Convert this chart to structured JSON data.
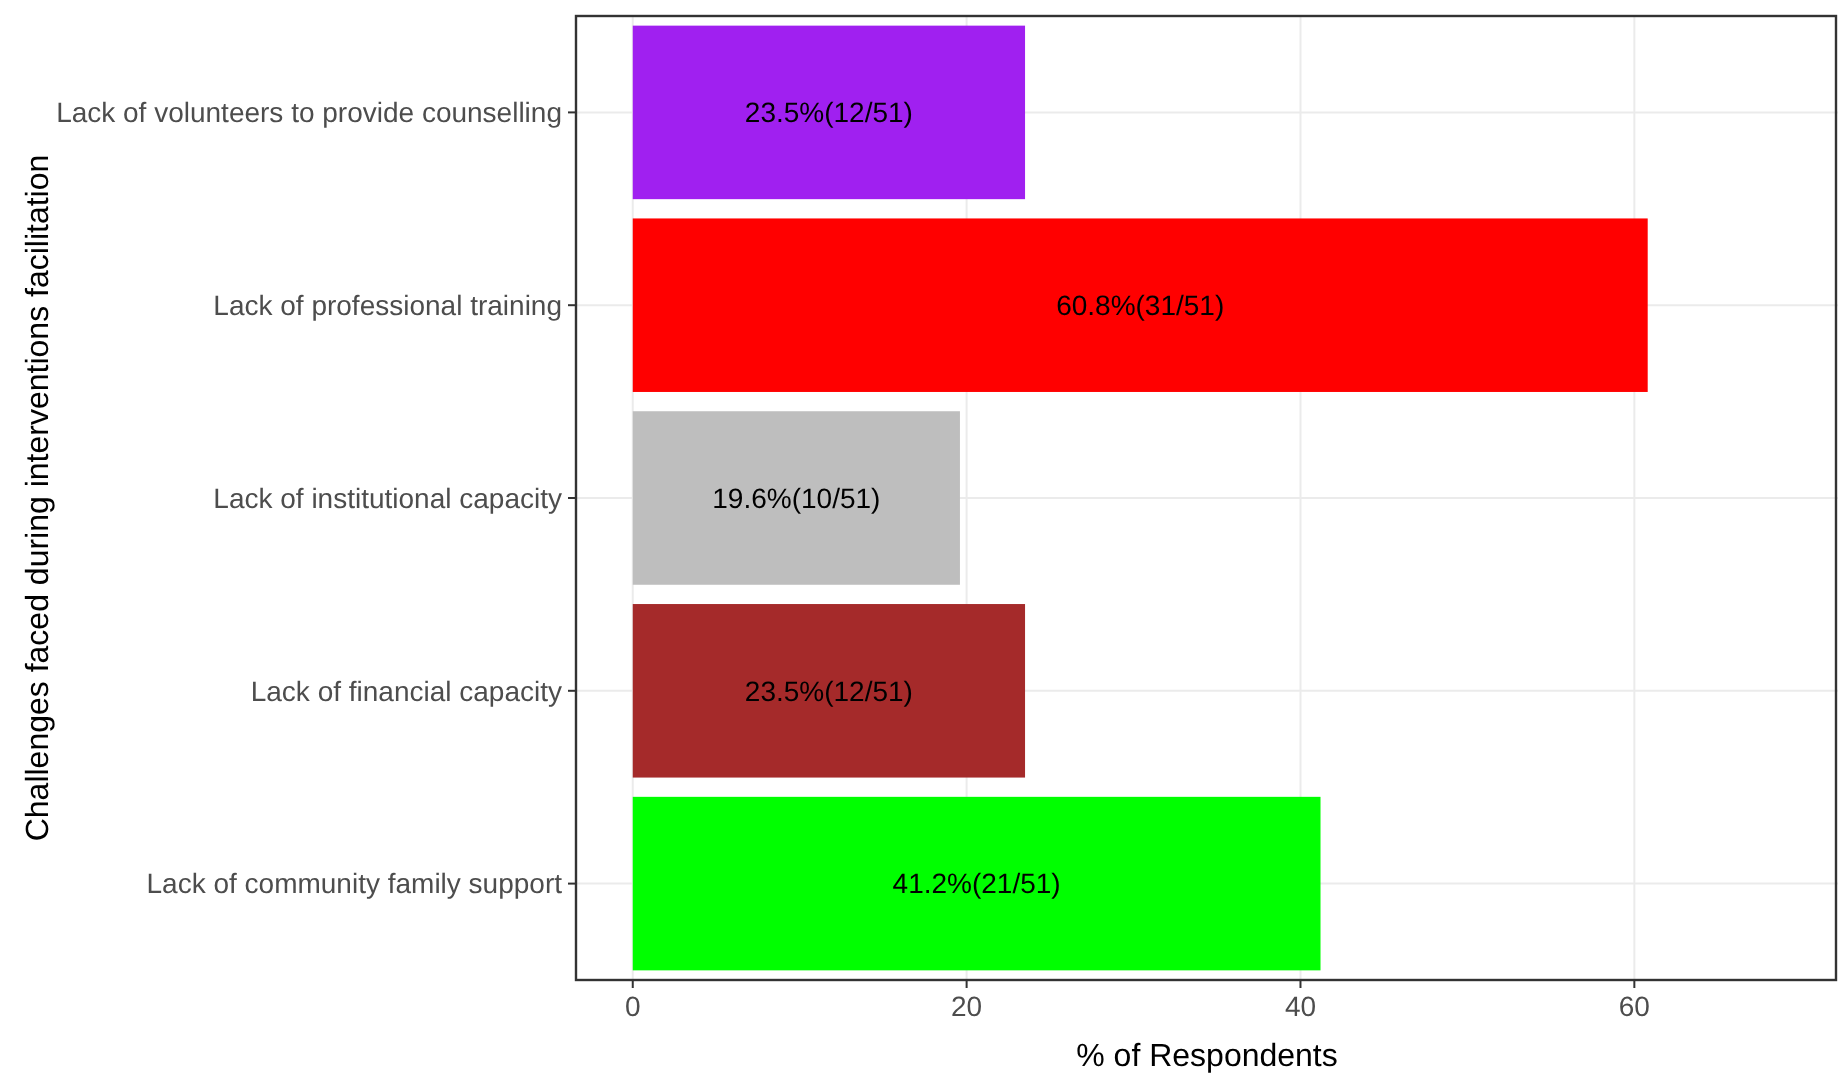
{
  "chart_data": {
    "type": "bar",
    "orientation": "horizontal",
    "categories": [
      "Lack of volunteers to provide counselling",
      "Lack of professional training",
      "Lack of institutional capacity",
      "Lack of financial capacity",
      "Lack of community family support"
    ],
    "values": [
      23.5,
      60.8,
      19.6,
      23.5,
      41.2
    ],
    "colors": [
      "#a020f0",
      "#ff0000",
      "#bebebe",
      "#a52a2a",
      "#00ff00"
    ],
    "value_labels": [
      "23.5%(12/51)",
      "60.8%(31/51)",
      "19.6%(10/51)",
      "23.5%(12/51)",
      "41.2%(21/51)"
    ],
    "xlim": [
      -3.4,
      72.2
    ],
    "xticks": [
      0,
      20,
      40,
      60
    ],
    "xlabel": "% of Respondents",
    "ylabel": "Challenges faced during interventions facilitation",
    "grid": true
  }
}
